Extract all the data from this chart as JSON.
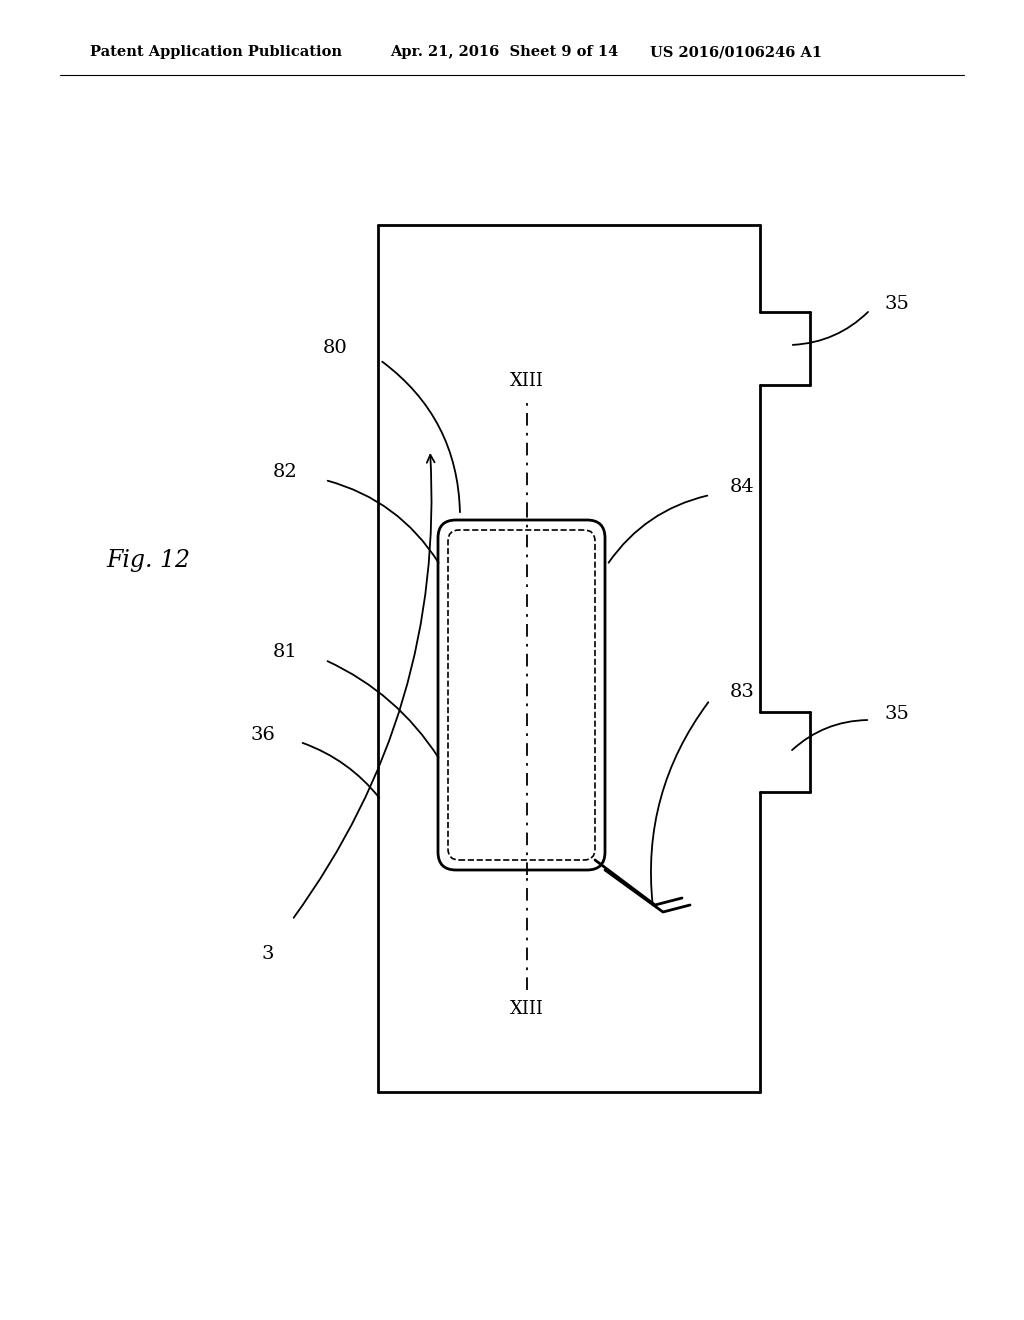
{
  "bg_color": "#ffffff",
  "line_color": "#000000",
  "header_left": "Patent Application Publication",
  "header_mid": "Apr. 21, 2016  Sheet 9 of 14",
  "header_right": "US 2016/0106246 A1",
  "fig_label": "Fig. 12",
  "label_80": "80",
  "label_81": "81",
  "label_82": "82",
  "label_83": "83",
  "label_84": "84",
  "label_36": "36",
  "label_35": "35",
  "label_3": "3",
  "label_XIII": "XIII"
}
